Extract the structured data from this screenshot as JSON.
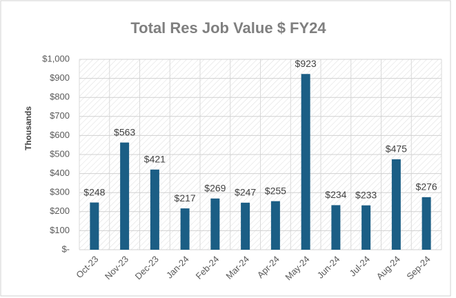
{
  "chart_data": {
    "type": "bar",
    "title": "Total Res Job Value $ FY24",
    "y_label": "Thousands",
    "categories": [
      "Oct-23",
      "Nov-23",
      "Dec-23",
      "Jan-24",
      "Feb-24",
      "Mar-24",
      "Apr-24",
      "May-24",
      "Jun-24",
      "Jul-24",
      "Aug-24",
      "Sep-24"
    ],
    "values": [
      248,
      563,
      421,
      217,
      269,
      247,
      255,
      923,
      234,
      233,
      475,
      276
    ],
    "value_labels": [
      "$248",
      "$563",
      "$421",
      "$217",
      "$269",
      "$247",
      "$255",
      "$923",
      "$234",
      "$233",
      "$475",
      "$276"
    ],
    "color": "#1b5e85",
    "ylim": [
      0,
      1000
    ],
    "yticks": [
      {
        "value": 0,
        "label": "$-"
      },
      {
        "value": 100,
        "label": "$100"
      },
      {
        "value": 200,
        "label": "$200"
      },
      {
        "value": 300,
        "label": "$300"
      },
      {
        "value": 400,
        "label": "$400"
      },
      {
        "value": 500,
        "label": "$500"
      },
      {
        "value": 600,
        "label": "$600"
      },
      {
        "value": 700,
        "label": "$700"
      },
      {
        "value": 800,
        "label": "$800"
      },
      {
        "value": 900,
        "label": "$900"
      },
      {
        "value": 1000,
        "label": "$1,000"
      }
    ],
    "grid": true
  }
}
